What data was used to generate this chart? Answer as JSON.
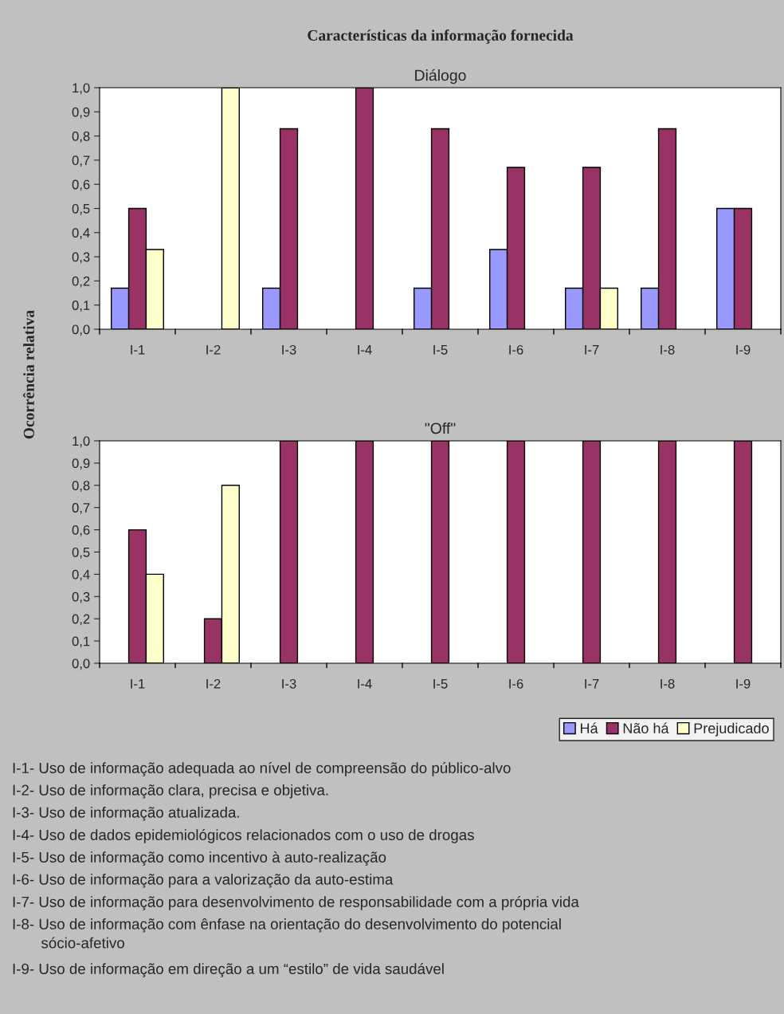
{
  "chart_data": [
    {
      "type": "bar",
      "title": "Características da informação fornecida",
      "subtitle": "Diálogo",
      "ylabel": "Ocorrência relativa",
      "categories": [
        "I-1",
        "I-2",
        "I-3",
        "I-4",
        "I-5",
        "I-6",
        "I-7",
        "I-8",
        "I-9"
      ],
      "series": [
        {
          "color": "#9999ff",
          "values": [
            0.17,
            null,
            0.17,
            null,
            0.17,
            0.33,
            0.17,
            0.17,
            0.5
          ]
        },
        {
          "color": "#993366",
          "values": [
            0.5,
            null,
            0.83,
            1.0,
            0.83,
            0.67,
            0.67,
            0.83,
            0.5
          ]
        },
        {
          "color": "#ffffcc",
          "values": [
            0.33,
            1.0,
            null,
            null,
            null,
            null,
            0.17,
            null,
            null
          ]
        }
      ],
      "ylim": [
        0,
        1
      ],
      "yticks": [
        {
          "value": 0,
          "label": "0,0"
        },
        {
          "value": 0.1,
          "label": "0,1"
        },
        {
          "value": 0.2,
          "label": "0,2"
        },
        {
          "value": 0.3,
          "label": "0,3"
        },
        {
          "value": 0.4,
          "label": "0,4"
        },
        {
          "value": 0.5,
          "label": "0,5"
        },
        {
          "value": 0.6,
          "label": "0,6"
        },
        {
          "value": 0.7,
          "label": "0,7"
        },
        {
          "value": 0.8,
          "label": "0,8"
        },
        {
          "value": 0.9,
          "label": "0,9"
        },
        {
          "value": 1.0,
          "label": "1,0"
        }
      ],
      "grid": false
    },
    {
      "type": "bar",
      "title": "\"Off\"",
      "categories": [
        "I-1",
        "I-2",
        "I-3",
        "I-4",
        "I-5",
        "I-6",
        "I-7",
        "I-8",
        "I-9"
      ],
      "series": [
        {
          "name": "Há",
          "color": "#9999ff",
          "values": [
            null,
            null,
            null,
            null,
            null,
            null,
            null,
            null,
            null
          ]
        },
        {
          "name": "Não há",
          "color": "#993366",
          "values": [
            0.6,
            0.2,
            1.0,
            1.0,
            1.0,
            1.0,
            1.0,
            1.0,
            1.0
          ]
        },
        {
          "name": "Prejudicado",
          "color": "#ffffcc",
          "values": [
            0.4,
            0.8,
            null,
            null,
            null,
            null,
            null,
            null,
            null
          ]
        }
      ],
      "ylim": [
        0,
        1
      ],
      "yticks": [
        {
          "value": 0,
          "label": "0,0"
        },
        {
          "value": 0.1,
          "label": "0,1"
        },
        {
          "value": 0.2,
          "label": "0,2"
        },
        {
          "value": 0.3,
          "label": "0,3"
        },
        {
          "value": 0.4,
          "label": "0,4"
        },
        {
          "value": 0.5,
          "label": "0,5"
        },
        {
          "value": 0.6,
          "label": "0,6"
        },
        {
          "value": 0.7,
          "label": "0,7"
        },
        {
          "value": 0.8,
          "label": "0,8"
        },
        {
          "value": 0.9,
          "label": "0,9"
        },
        {
          "value": 1.0,
          "label": "1,0"
        }
      ],
      "grid": false,
      "legend": "bottom right",
      "annotations": [
        "I-1- Uso de informação adequada ao nível de compreensão do público-alvo",
        "I-2- Uso de informação clara, precisa e objetiva.",
        "I-3- Uso de informação atualizada.",
        "I-4- Uso de dados epidemiológicos relacionados com o uso de drogas",
        "I-5- Uso de informação como incentivo à auto-realização",
        "I-6- Uso de informação para a valorização da auto-estima",
        "I-7- Uso de informação para desenvolvimento de responsabilidade com a própria vida",
        "I-8- Uso de informação com ênfase na orientação do desenvolvimento do potencial\n       sócio-afetivo",
        "I-9- Uso de informação em direção a um “estilo” de vida saudável"
      ]
    }
  ]
}
